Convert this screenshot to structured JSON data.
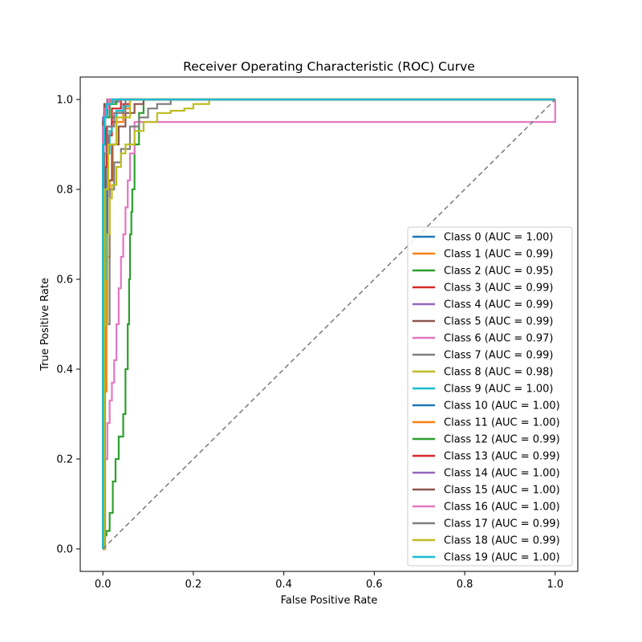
{
  "chart_data": {
    "type": "line",
    "title": "Receiver Operating Characteristic (ROC) Curve",
    "xlabel": "False Positive Rate",
    "ylabel": "True Positive Rate",
    "xlim": [
      -0.05,
      1.05
    ],
    "ylim": [
      -0.05,
      1.05
    ],
    "xticks": [
      0.0,
      0.2,
      0.4,
      0.6,
      0.8,
      1.0
    ],
    "yticks": [
      0.0,
      0.2,
      0.4,
      0.6,
      0.8,
      1.0
    ],
    "xtick_labels": [
      "0.0",
      "0.2",
      "0.4",
      "0.6",
      "0.8",
      "1.0"
    ],
    "ytick_labels": [
      "0.0",
      "0.2",
      "0.4",
      "0.6",
      "0.8",
      "1.0"
    ],
    "grid": false,
    "legend_position": "lower-right",
    "reference_line": {
      "x": [
        0,
        1
      ],
      "y": [
        0,
        1
      ],
      "color": "#808080",
      "style": "dashed"
    },
    "series": [
      {
        "name": "Class 0 (AUC = 1.00)",
        "color": "#1f77b4",
        "x": [
          0,
          0,
          0.004,
          0.01,
          0.02,
          1
        ],
        "y": [
          0,
          0.9,
          0.97,
          0.99,
          1,
          1
        ]
      },
      {
        "name": "Class 1 (AUC = 0.99)",
        "color": "#ff7f0e",
        "x": [
          0,
          0.003,
          0.008,
          0.015,
          0.022,
          0.03,
          0.045,
          0.06,
          1
        ],
        "y": [
          0,
          0.35,
          0.65,
          0.82,
          0.9,
          0.95,
          0.98,
          1,
          1
        ]
      },
      {
        "name": "Class 2 (AUC = 0.95)",
        "color": "#2ca02c",
        "x": [
          0,
          0.003,
          0.008,
          0.015,
          0.022,
          0.028,
          0.035,
          0.045,
          0.05,
          0.055,
          0.058,
          0.06,
          0.063,
          0.065,
          0.07,
          0.08,
          0.09,
          1
        ],
        "y": [
          0,
          0.03,
          0.04,
          0.08,
          0.15,
          0.2,
          0.25,
          0.3,
          0.4,
          0.5,
          0.6,
          0.7,
          0.75,
          0.8,
          0.9,
          0.97,
          1,
          1
        ]
      },
      {
        "name": "Class 3 (AUC = 0.99)",
        "color": "#d62728",
        "x": [
          0,
          0.002,
          0.006,
          0.012,
          0.02,
          0.03,
          0.045,
          0.06,
          1
        ],
        "y": [
          0,
          0.6,
          0.85,
          0.92,
          0.95,
          0.97,
          0.99,
          1,
          1
        ]
      },
      {
        "name": "Class 4 (AUC = 0.99)",
        "color": "#9467bd",
        "x": [
          0,
          0,
          0.002,
          0.005,
          0.01,
          0.02,
          0.035,
          1
        ],
        "y": [
          0,
          0.7,
          0.9,
          0.96,
          0.99,
          0.995,
          1,
          1
        ]
      },
      {
        "name": "Class 5 (AUC = 0.99)",
        "color": "#8c564b",
        "x": [
          0,
          0.004,
          0.01,
          0.02,
          0.035,
          0.05,
          0.07,
          0.09,
          1
        ],
        "y": [
          0,
          0.5,
          0.82,
          0.9,
          0.94,
          0.97,
          0.99,
          1,
          1
        ]
      },
      {
        "name": "Class 6 (AUC = 0.97)",
        "color": "#e377c2",
        "x": [
          0,
          0.005,
          0.01,
          0.015,
          0.02,
          0.025,
          0.03,
          0.035,
          0.04,
          0.045,
          0.05,
          0.055,
          0.06,
          0.07,
          1
        ],
        "y": [
          0,
          0.2,
          0.28,
          0.33,
          0.37,
          0.42,
          0.5,
          0.58,
          0.65,
          0.7,
          0.76,
          0.82,
          0.88,
          0.95,
          1
        ]
      },
      {
        "name": "Class 7 (AUC = 0.99)",
        "color": "#7f7f7f",
        "x": [
          0,
          0.005,
          0.015,
          0.025,
          0.04,
          0.06,
          0.08,
          0.1,
          0.12,
          0.15,
          1
        ],
        "y": [
          0,
          0.5,
          0.8,
          0.86,
          0.89,
          0.94,
          0.96,
          0.98,
          0.99,
          1,
          1
        ]
      },
      {
        "name": "Class 8 (AUC = 0.98)",
        "color": "#bcbd22",
        "x": [
          0,
          0.004,
          0.01,
          0.015,
          0.02,
          0.03,
          0.04,
          0.05,
          0.07,
          0.09,
          0.12,
          0.15,
          0.18,
          0.2,
          0.235,
          0.235,
          1
        ],
        "y": [
          0,
          0.5,
          0.7,
          0.78,
          0.81,
          0.85,
          0.88,
          0.9,
          0.93,
          0.95,
          0.97,
          0.975,
          0.98,
          0.99,
          0.99,
          1,
          1
        ]
      },
      {
        "name": "Class 9 (AUC = 1.00)",
        "color": "#17becf",
        "x": [
          0,
          0,
          0.002,
          0.004,
          0.006,
          0.01,
          0.015,
          0.02,
          0.03,
          0.045,
          0.06,
          1
        ],
        "y": [
          0,
          0.05,
          0.3,
          0.6,
          0.8,
          0.88,
          0.93,
          0.96,
          0.975,
          0.985,
          1,
          1
        ]
      },
      {
        "name": "Class 10 (AUC = 1.00)",
        "color": "#1f77b4",
        "x": [
          0,
          0,
          0.003,
          0.008,
          0.015,
          1
        ],
        "y": [
          0,
          0.92,
          0.97,
          0.99,
          1,
          1
        ]
      },
      {
        "name": "Class 11 (AUC = 1.00)",
        "color": "#ff7f0e",
        "x": [
          0,
          0,
          0.005,
          0.015,
          1
        ],
        "y": [
          0,
          0.95,
          0.99,
          1,
          1
        ]
      },
      {
        "name": "Class 12 (AUC = 0.99)",
        "color": "#2ca02c",
        "x": [
          0,
          0,
          0.005,
          0.015,
          0.03,
          1
        ],
        "y": [
          0,
          0.9,
          0.96,
          0.99,
          1,
          1
        ]
      },
      {
        "name": "Class 13 (AUC = 0.99)",
        "color": "#d62728",
        "x": [
          0,
          0.002,
          0.008,
          0.02,
          0.04,
          1
        ],
        "y": [
          0,
          0.85,
          0.94,
          0.98,
          1,
          1
        ]
      },
      {
        "name": "Class 14 (AUC = 1.00)",
        "color": "#9467bd",
        "x": [
          0,
          0,
          0.004,
          0.01,
          1
        ],
        "y": [
          0,
          0.96,
          0.99,
          1,
          1
        ]
      },
      {
        "name": "Class 15 (AUC = 1.00)",
        "color": "#8c564b",
        "x": [
          0,
          0,
          0.003,
          0.01,
          1
        ],
        "y": [
          0,
          0.95,
          0.99,
          1,
          1
        ]
      },
      {
        "name": "Class 16 (AUC = 1.00)",
        "color": "#e377c2",
        "x": [
          0,
          0,
          0.005,
          0.012,
          1
        ],
        "y": [
          0,
          0.94,
          0.98,
          1,
          1
        ]
      },
      {
        "name": "Class 17 (AUC = 0.99)",
        "color": "#7f7f7f",
        "x": [
          0,
          0.003,
          0.01,
          0.025,
          0.05,
          1
        ],
        "y": [
          0,
          0.88,
          0.94,
          0.97,
          1,
          1
        ]
      },
      {
        "name": "Class 18 (AUC = 0.99)",
        "color": "#bcbd22",
        "x": [
          0,
          0.004,
          0.012,
          0.03,
          0.06,
          1
        ],
        "y": [
          0,
          0.8,
          0.9,
          0.96,
          1,
          1
        ]
      },
      {
        "name": "Class 19 (AUC = 1.00)",
        "color": "#17becf",
        "x": [
          0,
          0,
          0.003,
          0.008,
          0.02,
          1
        ],
        "y": [
          0,
          0.9,
          0.96,
          0.99,
          1,
          1
        ]
      }
    ]
  }
}
